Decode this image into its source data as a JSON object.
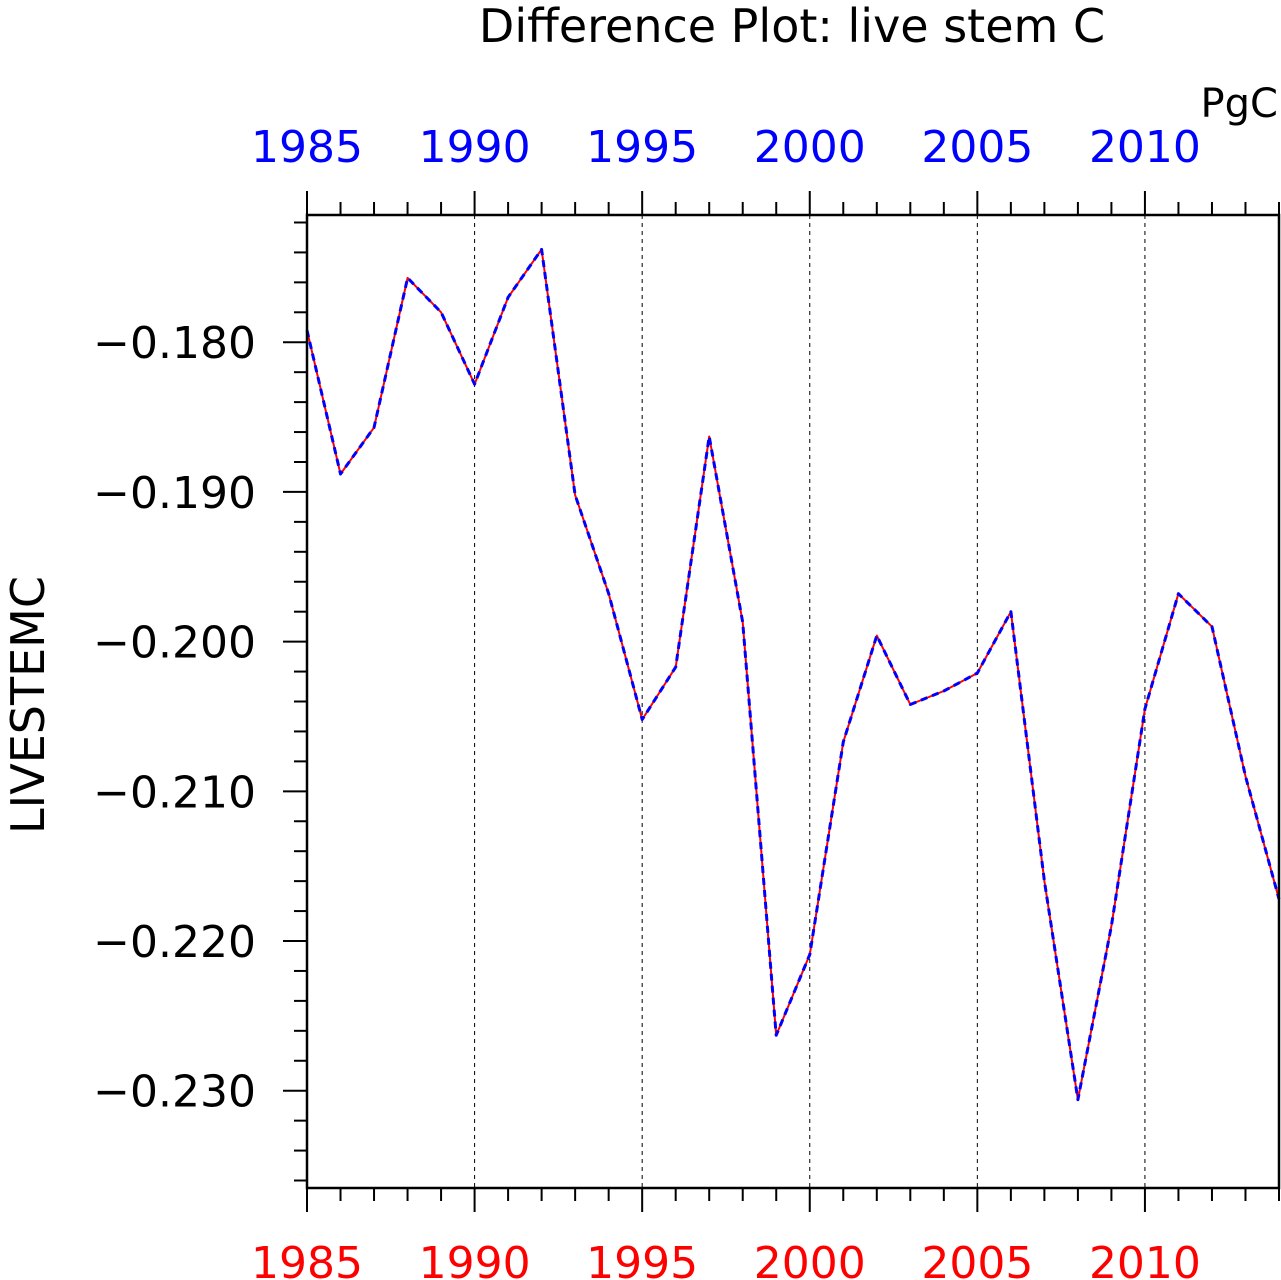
{
  "chart_data": {
    "type": "line",
    "title": "Difference Plot: live stem C",
    "units": "PgC",
    "ylabel": "LIVESTEMC",
    "xlabel": "",
    "xlim": [
      1985,
      2014
    ],
    "ylim": [
      -0.2365,
      -0.1715
    ],
    "x_ticks": [
      1985,
      1990,
      1995,
      2000,
      2005,
      2010
    ],
    "y_ticks": [
      -0.18,
      -0.19,
      -0.2,
      -0.21,
      -0.22,
      -0.23
    ],
    "y_tick_labels": [
      "−0.180",
      "−0.190",
      "−0.200",
      "−0.210",
      "−0.220",
      "−0.230"
    ],
    "bottom_axis_color": "#ff0000",
    "top_axis_color": "#0000ff",
    "grid": "vertical dashed at major x ticks",
    "x": [
      1985,
      1986,
      1987,
      1988,
      1989,
      1990,
      1991,
      1992,
      1993,
      1994,
      1995,
      1996,
      1997,
      1998,
      1999,
      2000,
      2001,
      2002,
      2003,
      2004,
      2005,
      2006,
      2007,
      2008,
      2009,
      2010,
      2011,
      2012,
      2013,
      2014
    ],
    "series": [
      {
        "color": "#ff0000",
        "style": "solid",
        "values": [
          -0.1792,
          -0.1888,
          -0.1857,
          -0.1757,
          -0.178,
          -0.1828,
          -0.177,
          -0.1738,
          -0.1902,
          -0.1968,
          -0.2052,
          -0.2017,
          -0.1863,
          -0.1987,
          -0.2263,
          -0.2209,
          -0.2067,
          -0.1996,
          -0.2042,
          -0.2033,
          -0.2021,
          -0.198,
          -0.216,
          -0.2306,
          -0.219,
          -0.2045,
          -0.1968,
          -0.199,
          -0.209,
          -0.2172
        ]
      },
      {
        "color": "#0000ff",
        "style": "dashed",
        "values": [
          -0.1792,
          -0.1888,
          -0.1857,
          -0.1757,
          -0.178,
          -0.1828,
          -0.177,
          -0.1738,
          -0.1902,
          -0.1968,
          -0.2052,
          -0.2017,
          -0.1863,
          -0.1987,
          -0.2263,
          -0.2209,
          -0.2067,
          -0.1996,
          -0.2042,
          -0.2033,
          -0.2021,
          -0.198,
          -0.216,
          -0.2306,
          -0.219,
          -0.2045,
          -0.1968,
          -0.199,
          -0.209,
          -0.2172
        ]
      }
    ]
  }
}
